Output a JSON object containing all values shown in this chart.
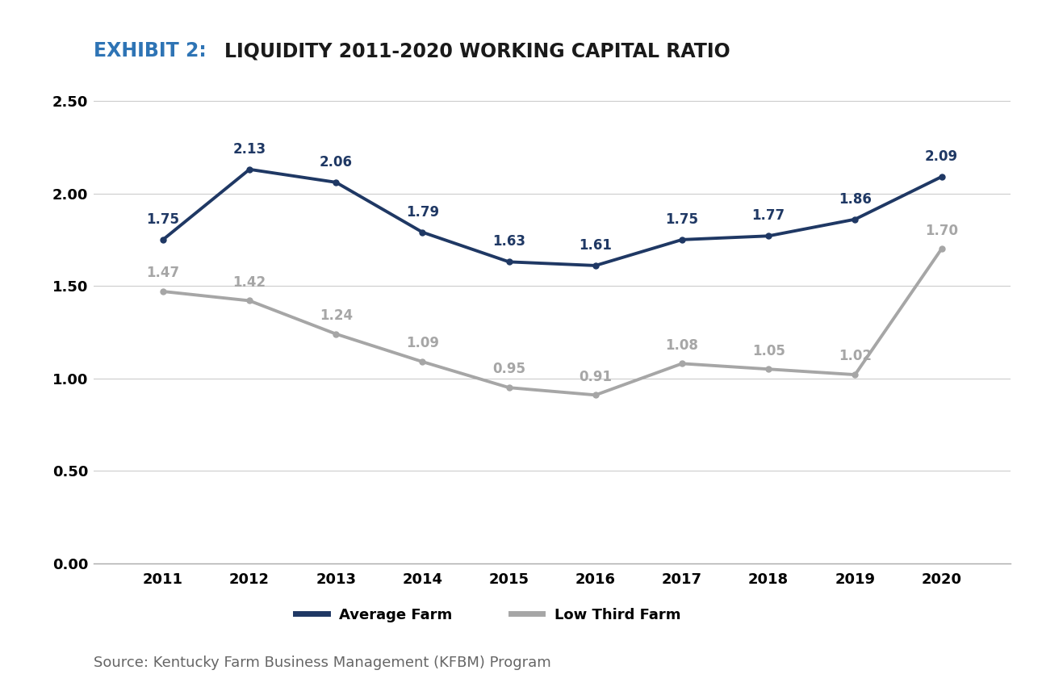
{
  "title_exhibit": "EXHIBIT 2:",
  "title_main": "LIQUIDITY 2011-2020 WORKING CAPITAL RATIO",
  "years": [
    2011,
    2012,
    2013,
    2014,
    2015,
    2016,
    2017,
    2018,
    2019,
    2020
  ],
  "avg_farm": [
    1.75,
    2.13,
    2.06,
    1.79,
    1.63,
    1.61,
    1.75,
    1.77,
    1.86,
    2.09
  ],
  "low_third": [
    1.47,
    1.42,
    1.24,
    1.09,
    0.95,
    0.91,
    1.08,
    1.05,
    1.02,
    1.7
  ],
  "avg_farm_color": "#1F3864",
  "low_third_color": "#A6A6A6",
  "title_exhibit_color": "#2E74B5",
  "title_main_color": "#1A1A1A",
  "background_color": "#FFFFFF",
  "ylim": [
    0.0,
    2.6
  ],
  "yticks": [
    0.0,
    0.5,
    1.0,
    1.5,
    2.0,
    2.5
  ],
  "source_text": "Source: Kentucky Farm Business Management (KFBM) Program",
  "legend_avg": "Average Farm",
  "legend_low": "Low Third Farm",
  "line_width": 2.8,
  "marker_size": 5,
  "label_fontsize": 12,
  "tick_fontsize": 13
}
